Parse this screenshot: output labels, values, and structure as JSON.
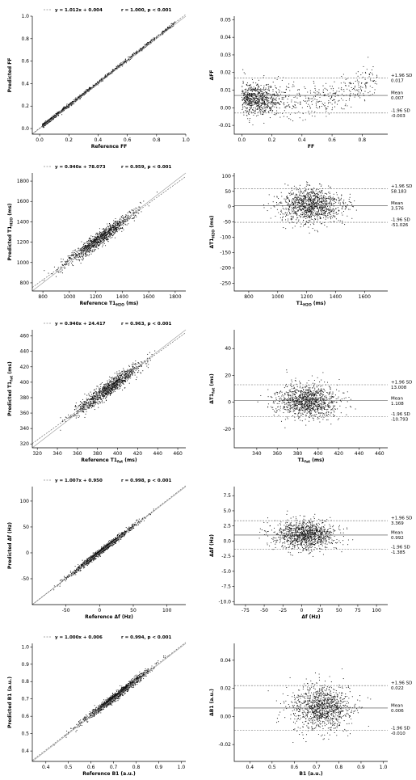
{
  "chart_data": [
    {
      "type": "scatter",
      "panel": "ff-regression",
      "xlabel": "Reference FF",
      "ylabel": "Predicted FF",
      "xlim": [
        -0.05,
        1.0
      ],
      "ylim": [
        -0.05,
        1.0
      ],
      "xticks": [
        0.0,
        0.2,
        0.4,
        0.6,
        0.8,
        1.0
      ],
      "yticks": [
        0.0,
        0.2,
        0.4,
        0.6,
        0.8,
        1.0
      ],
      "tick_labels_x": [
        "0.0",
        "0.2",
        "0.4",
        "0.6",
        "0.8",
        "1.0"
      ],
      "tick_labels_y": [
        "0.0",
        "0.2",
        "0.4",
        "0.6",
        "0.8",
        "1.0"
      ],
      "fit": {
        "slope": 1.012,
        "intercept": 0.004,
        "text": "y = 1.012x + 0.004"
      },
      "stats_text": "r = 1.000, p < 0.001",
      "data_range": [
        0.02,
        0.93
      ],
      "spread": 0.008
    },
    {
      "type": "scatter",
      "panel": "ff-bland-altman",
      "xlabel": "FF",
      "ylabel": "ΔFF",
      "xlim": [
        -0.05,
        0.97
      ],
      "ylim": [
        -0.015,
        0.052
      ],
      "xticks": [
        0.0,
        0.2,
        0.4,
        0.6,
        0.8
      ],
      "yticks": [
        -0.01,
        0.0,
        0.01,
        0.02,
        0.03,
        0.04,
        0.05
      ],
      "tick_labels_x": [
        "0.0",
        "0.2",
        "0.4",
        "0.6",
        "0.8"
      ],
      "tick_labels_y": [
        "-0.01",
        "0.00",
        "0.01",
        "0.02",
        "0.03",
        "0.04",
        "0.05"
      ],
      "mean": 0.007,
      "upper": 0.017,
      "lower": -0.003,
      "upper_label": "+1.96 SD",
      "upper_value": "0.017",
      "mean_label": "Mean",
      "mean_value": "0.007",
      "lower_label": "-1.96 SD",
      "lower_value": "-0.003"
    },
    {
      "type": "scatter",
      "panel": "t1h2o-regression",
      "xlabel": "Reference T1H2O (ms)",
      "ylabel": "Predicted T1H2O (ms)",
      "xlim": [
        720,
        1880
      ],
      "ylim": [
        720,
        1880
      ],
      "xticks": [
        800,
        1000,
        1200,
        1400,
        1600,
        1800
      ],
      "yticks": [
        800,
        1000,
        1200,
        1400,
        1600,
        1800
      ],
      "tick_labels_x": [
        "800",
        "1000",
        "1200",
        "1400",
        "1600",
        "1800"
      ],
      "tick_labels_y": [
        "800",
        "1000",
        "1200",
        "1400",
        "1600",
        "1800"
      ],
      "fit": {
        "slope": 0.94,
        "intercept": 78.073,
        "text": "y = 0.940x + 78.073"
      },
      "stats_text": "r = 0.959, p < 0.001",
      "center": [
        1230,
        1235
      ],
      "spread": 35
    },
    {
      "type": "scatter",
      "panel": "t1h2o-bland-altman",
      "xlabel": "T1H2O (ms)",
      "ylabel": "ΔT1H2O (ms)",
      "xlim": [
        700,
        1760
      ],
      "ylim": [
        -275,
        110
      ],
      "xticks": [
        800,
        1000,
        1200,
        1400,
        1600
      ],
      "yticks": [
        -250,
        -200,
        -150,
        -100,
        -50,
        0,
        50,
        100
      ],
      "tick_labels_x": [
        "800",
        "1000",
        "1200",
        "1400",
        "1600"
      ],
      "tick_labels_y": [
        "-250",
        "-200",
        "-150",
        "-100",
        "-50",
        "0",
        "50",
        "100"
      ],
      "mean": 3.576,
      "upper": 58.183,
      "lower": -51.026,
      "upper_label": "+1.96 SD",
      "upper_value": "58.183",
      "mean_label": "Mean",
      "mean_value": "3.576",
      "lower_label": "-1.96 SD",
      "lower_value": "-51.026"
    },
    {
      "type": "scatter",
      "panel": "t1fat-regression",
      "xlabel": "Reference T1fat (ms)",
      "ylabel": "Predicted T1fat (ms)",
      "xlim": [
        315,
        468
      ],
      "ylim": [
        315,
        468
      ],
      "xticks": [
        320,
        340,
        360,
        380,
        400,
        420,
        440,
        460
      ],
      "yticks": [
        320,
        340,
        360,
        380,
        400,
        420,
        440,
        460
      ],
      "tick_labels_x": [
        "320",
        "340",
        "360",
        "380",
        "400",
        "420",
        "440",
        "460"
      ],
      "tick_labels_y": [
        "320",
        "340",
        "360",
        "380",
        "400",
        "420",
        "440",
        "460"
      ],
      "fit": {
        "slope": 0.94,
        "intercept": 24.417,
        "text": "y = 0.940x + 24.417"
      },
      "stats_text": "r = 0.963, p < 0.001",
      "center": [
        390,
        391
      ],
      "spread": 5
    },
    {
      "type": "scatter",
      "panel": "t1fat-bland-altman",
      "xlabel": "T1fat (ms)",
      "ylabel": "ΔT1fat (ms)",
      "xlim": [
        318,
        468
      ],
      "ylim": [
        -34,
        54
      ],
      "xticks": [
        340,
        360,
        380,
        400,
        420,
        440,
        460
      ],
      "yticks": [
        -20,
        0,
        20,
        40
      ],
      "tick_labels_x": [
        "340",
        "360",
        "380",
        "400",
        "420",
        "440",
        "460"
      ],
      "tick_labels_y": [
        "-20",
        "0",
        "20",
        "40"
      ],
      "mean": 1.108,
      "upper": 13.008,
      "lower": -10.793,
      "upper_label": "+1.96 SD",
      "upper_value": "13.008",
      "mean_label": "Mean",
      "mean_value": "1.108",
      "lower_label": "-1.96 SD",
      "lower_value": "-10.793"
    },
    {
      "type": "scatter",
      "panel": "df-regression",
      "xlabel": "Reference Δf (Hz)",
      "ylabel": "Predicted Δf (Hz)",
      "xlim": [
        -100,
        128
      ],
      "ylim": [
        -100,
        128
      ],
      "xticks": [
        -50,
        0,
        50,
        100
      ],
      "yticks": [
        -50,
        0,
        50,
        100
      ],
      "tick_labels_x": [
        "-50",
        "0",
        "50",
        "100"
      ],
      "tick_labels_y": [
        "-50",
        "0",
        "50",
        "100"
      ],
      "fit": {
        "slope": 1.007,
        "intercept": 0.95,
        "text": "y = 1.007x + 0.950"
      },
      "stats_text": "r = 0.998, p < 0.001",
      "center": [
        5,
        6
      ],
      "spread": 3
    },
    {
      "type": "scatter",
      "panel": "df-bland-altman",
      "xlabel": "Δf (Hz)",
      "ylabel": "ΔΔf (Hz)",
      "xlim": [
        -90,
        115
      ],
      "ylim": [
        -10.5,
        9
      ],
      "xticks": [
        -75,
        -50,
        -25,
        0,
        25,
        50,
        75,
        100
      ],
      "yticks": [
        -10.0,
        -7.5,
        -5.0,
        -2.5,
        0.0,
        2.5,
        5.0,
        7.5
      ],
      "tick_labels_x": [
        "-75",
        "-50",
        "-25",
        "0",
        "25",
        "50",
        "75",
        "100"
      ],
      "tick_labels_y": [
        "-10.0",
        "-7.5",
        "-5.0",
        "-2.5",
        "0.0",
        "2.5",
        "5.0",
        "7.5"
      ],
      "mean": 0.992,
      "upper": 3.369,
      "lower": -1.385,
      "upper_label": "+1.96 SD",
      "upper_value": "3.369",
      "mean_label": "Mean",
      "mean_value": "0.992",
      "lower_label": "-1.96 SD",
      "lower_value": "-1.385"
    },
    {
      "type": "scatter",
      "panel": "b1-regression",
      "xlabel": "Reference B1 (a.u.)",
      "ylabel": "Predicted B1 (a.u.)",
      "xlim": [
        0.34,
        1.02
      ],
      "ylim": [
        0.34,
        1.02
      ],
      "xticks": [
        0.4,
        0.5,
        0.6,
        0.7,
        0.8,
        0.9,
        1.0
      ],
      "yticks": [
        0.4,
        0.5,
        0.6,
        0.7,
        0.8,
        0.9,
        1.0
      ],
      "tick_labels_x": [
        "0.4",
        "0.5",
        "0.6",
        "0.7",
        "0.8",
        "0.9",
        "1.0"
      ],
      "tick_labels_y": [
        "0.4",
        "0.5",
        "0.6",
        "0.7",
        "0.8",
        "0.9",
        "1.0"
      ],
      "fit": {
        "slope": 1.0,
        "intercept": 0.006,
        "text": "y = 1.000x + 0.006"
      },
      "stats_text": "r = 0.994, p < 0.001",
      "center": [
        0.71,
        0.716
      ],
      "spread": 0.012
    },
    {
      "type": "scatter",
      "panel": "b1-bland-altman",
      "xlabel": "B1 (a.u.)",
      "ylabel": "ΔB1 (a.u.)",
      "xlim": [
        0.33,
        1.02
      ],
      "ylim": [
        -0.032,
        0.052
      ],
      "xticks": [
        0.4,
        0.5,
        0.6,
        0.7,
        0.8,
        0.9,
        1.0
      ],
      "yticks": [
        -0.02,
        0.0,
        0.02,
        0.04
      ],
      "tick_labels_x": [
        "0.4",
        "0.5",
        "0.6",
        "0.7",
        "0.8",
        "0.9",
        "1.0"
      ],
      "tick_labels_y": [
        "-0.02",
        "0.00",
        "0.02",
        "0.04"
      ],
      "mean": 0.006,
      "upper": 0.022,
      "lower": -0.01,
      "upper_label": "+1.96 SD",
      "upper_value": "0.022",
      "mean_label": "Mean",
      "mean_value": "0.006",
      "lower_label": "-1.96 SD",
      "lower_value": "-0.010"
    }
  ]
}
